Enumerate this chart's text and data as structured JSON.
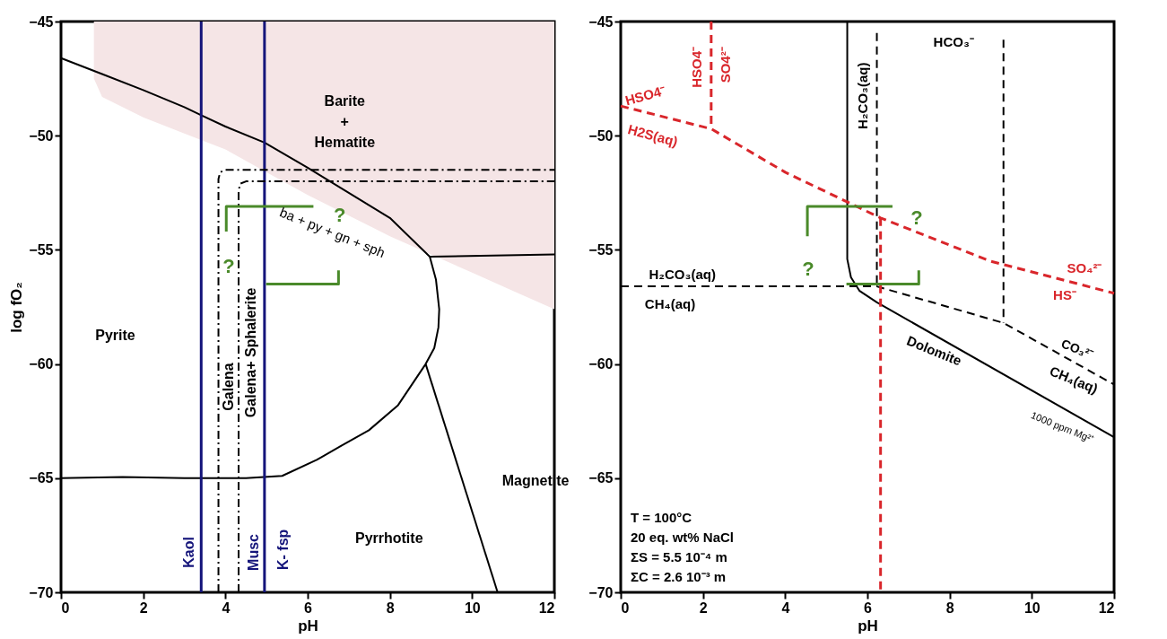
{
  "chart_data": [
    {
      "type": "line",
      "xlabel": "pH",
      "ylabel": "log fO₂",
      "xlim": [
        0,
        12
      ],
      "ylim": [
        -70,
        -45
      ],
      "xticks": [
        0,
        2,
        4,
        6,
        8,
        10,
        12
      ],
      "yticks": [
        -70,
        -65,
        -60,
        -55,
        -50,
        -45
      ],
      "grid": false,
      "series": [
        {
          "type": "area",
          "color": "#f5e5e6",
          "x": [
            0.8,
            1.0,
            2,
            3,
            4,
            5,
            6,
            7,
            8,
            9,
            10,
            11,
            12
          ],
          "values": [
            -47.5,
            -48.3,
            -49.2,
            -49.9,
            -50.6,
            -51.6,
            -52.6,
            -53.5,
            -54.4,
            -55.2,
            -56.0,
            -56.8,
            -57.6
          ]
        },
        {
          "color": "#000000",
          "line_style": "solid",
          "x": [
            0,
            1,
            2,
            3,
            3.41,
            4,
            4.95,
            6,
            7,
            8,
            8.97,
            9.12,
            9.2,
            9.18,
            9.08,
            8.87,
            8.2,
            7.49,
            6.8,
            6.22,
            5.38,
            4.5,
            3,
            1.5,
            0
          ],
          "values": [
            -46.6,
            -47.3,
            -48.0,
            -48.75,
            -49.1,
            -49.6,
            -50.3,
            -51.4,
            -52.5,
            -53.6,
            -55.3,
            -56.3,
            -57.6,
            -58.4,
            -59.3,
            -60.0,
            -61.8,
            -62.9,
            -63.6,
            -64.2,
            -64.9,
            -65.0,
            -65.0,
            -64.95,
            -65.0
          ]
        },
        {
          "color": "#000000",
          "line_style": "solid",
          "x": [
            8.97,
            12
          ],
          "values": [
            -55.3,
            -55.2
          ]
        },
        {
          "color": "#000000",
          "line_style": "solid",
          "x": [
            8.87,
            10.62
          ],
          "values": [
            -60.0,
            -70
          ]
        },
        {
          "color": "#14147a",
          "line_style": "solid",
          "x": [
            3.41,
            3.41
          ],
          "values": [
            -45,
            -70
          ]
        },
        {
          "color": "#14147a",
          "line_style": "solid",
          "x": [
            4.95,
            4.95
          ],
          "values": [
            -45,
            -70
          ]
        },
        {
          "color": "#000000",
          "line_style": "dashdot",
          "x": [
            3.83,
            3.83,
            3.87,
            4.0,
            12
          ],
          "values": [
            -70,
            -51.9,
            -51.6,
            -51.5,
            -51.5
          ]
        },
        {
          "color": "#000000",
          "line_style": "dashdot",
          "x": [
            4.32,
            4.32,
            4.36,
            4.5,
            12
          ],
          "values": [
            -70,
            -52.4,
            -52.1,
            -52.0,
            -52.0
          ]
        },
        {
          "color": "#4a8a2a",
          "line_style": "solid",
          "x": [
            4.02,
            4.02,
            6.14
          ],
          "values": [
            -54.2,
            -53.1,
            -53.1
          ]
        },
        {
          "color": "#4a8a2a",
          "line_style": "solid",
          "x": [
            4.99,
            6.75,
            6.75
          ],
          "values": [
            -56.5,
            -56.5,
            -55.9
          ]
        }
      ],
      "annotations": [
        "Barite\n+\nHematite",
        "Pyrite",
        "Pyrrhotite",
        "Magnetite",
        "Galena",
        "Galena+ Sphalerite",
        "ba + py + gn + sph",
        "Kaol",
        "Musc",
        "K- fsp",
        "?",
        "?"
      ]
    },
    {
      "type": "line",
      "xlabel": "pH",
      "xlim": [
        0,
        12
      ],
      "ylim": [
        -70,
        -45
      ],
      "xticks": [
        0,
        2,
        4,
        6,
        8,
        10,
        12
      ],
      "yticks": [
        -70,
        -65,
        -60,
        -55,
        -50,
        -45
      ],
      "grid": false,
      "series": [
        {
          "color": "#000000",
          "line_style": "solid",
          "x": [
            5.51,
            5.51,
            5.6,
            5.81,
            6.23,
            12
          ],
          "values": [
            -45,
            -55.4,
            -56.2,
            -56.8,
            -57.3,
            -63.2
          ]
        },
        {
          "color": "#000000",
          "line_style": "dashed",
          "x": [
            6.23,
            6.23
          ],
          "values": [
            -45.5,
            -56.6
          ]
        },
        {
          "color": "#000000",
          "line_style": "dashed",
          "x": [
            0,
            6.23,
            9.31,
            12
          ],
          "values": [
            -56.6,
            -56.6,
            -58.2,
            -60.9
          ]
        },
        {
          "color": "#000000",
          "line_style": "dashed",
          "x": [
            9.31,
            9.31
          ],
          "values": [
            -45.8,
            -58.2
          ]
        },
        {
          "color": "#d9262b",
          "line_style": "dashed",
          "x": [
            0,
            2.2,
            4,
            6.32,
            9,
            12
          ],
          "values": [
            -48.7,
            -49.7,
            -51.6,
            -53.6,
            -55.5,
            -56.9
          ]
        },
        {
          "color": "#d9262b",
          "line_style": "dashed",
          "x": [
            2.2,
            2.2
          ],
          "values": [
            -45,
            -49.7
          ]
        },
        {
          "color": "#d9262b",
          "line_style": "dashed",
          "x": [
            6.32,
            6.32
          ],
          "values": [
            -53.6,
            -70
          ]
        },
        {
          "color": "#4a8a2a",
          "line_style": "solid",
          "x": [
            4.54,
            4.54,
            6.61
          ],
          "values": [
            -54.4,
            -53.1,
            -53.1
          ]
        },
        {
          "color": "#4a8a2a",
          "line_style": "solid",
          "x": [
            5.49,
            7.25,
            7.25
          ],
          "values": [
            -56.5,
            -56.5,
            -55.9
          ]
        }
      ],
      "annotations": [
        "HSO4⁻",
        "H2S(aq)",
        "HSO4⁻",
        "SO4²⁻",
        "H₂CO₃(aq)",
        "HCO₃⁻",
        "H₂CO₃(aq)",
        "CH₄(aq)",
        "SO₄²⁻",
        "HS⁻",
        "Dolomite",
        "CO₃²⁻",
        "CH₄(aq)",
        "1000 ppm Mg²⁺",
        "?",
        "?",
        "T = 100°C\n20 eq. wt% NaCl\nΣS = 5.5 10⁻⁴ m\nΣC = 2.6 10⁻³ m"
      ]
    }
  ]
}
